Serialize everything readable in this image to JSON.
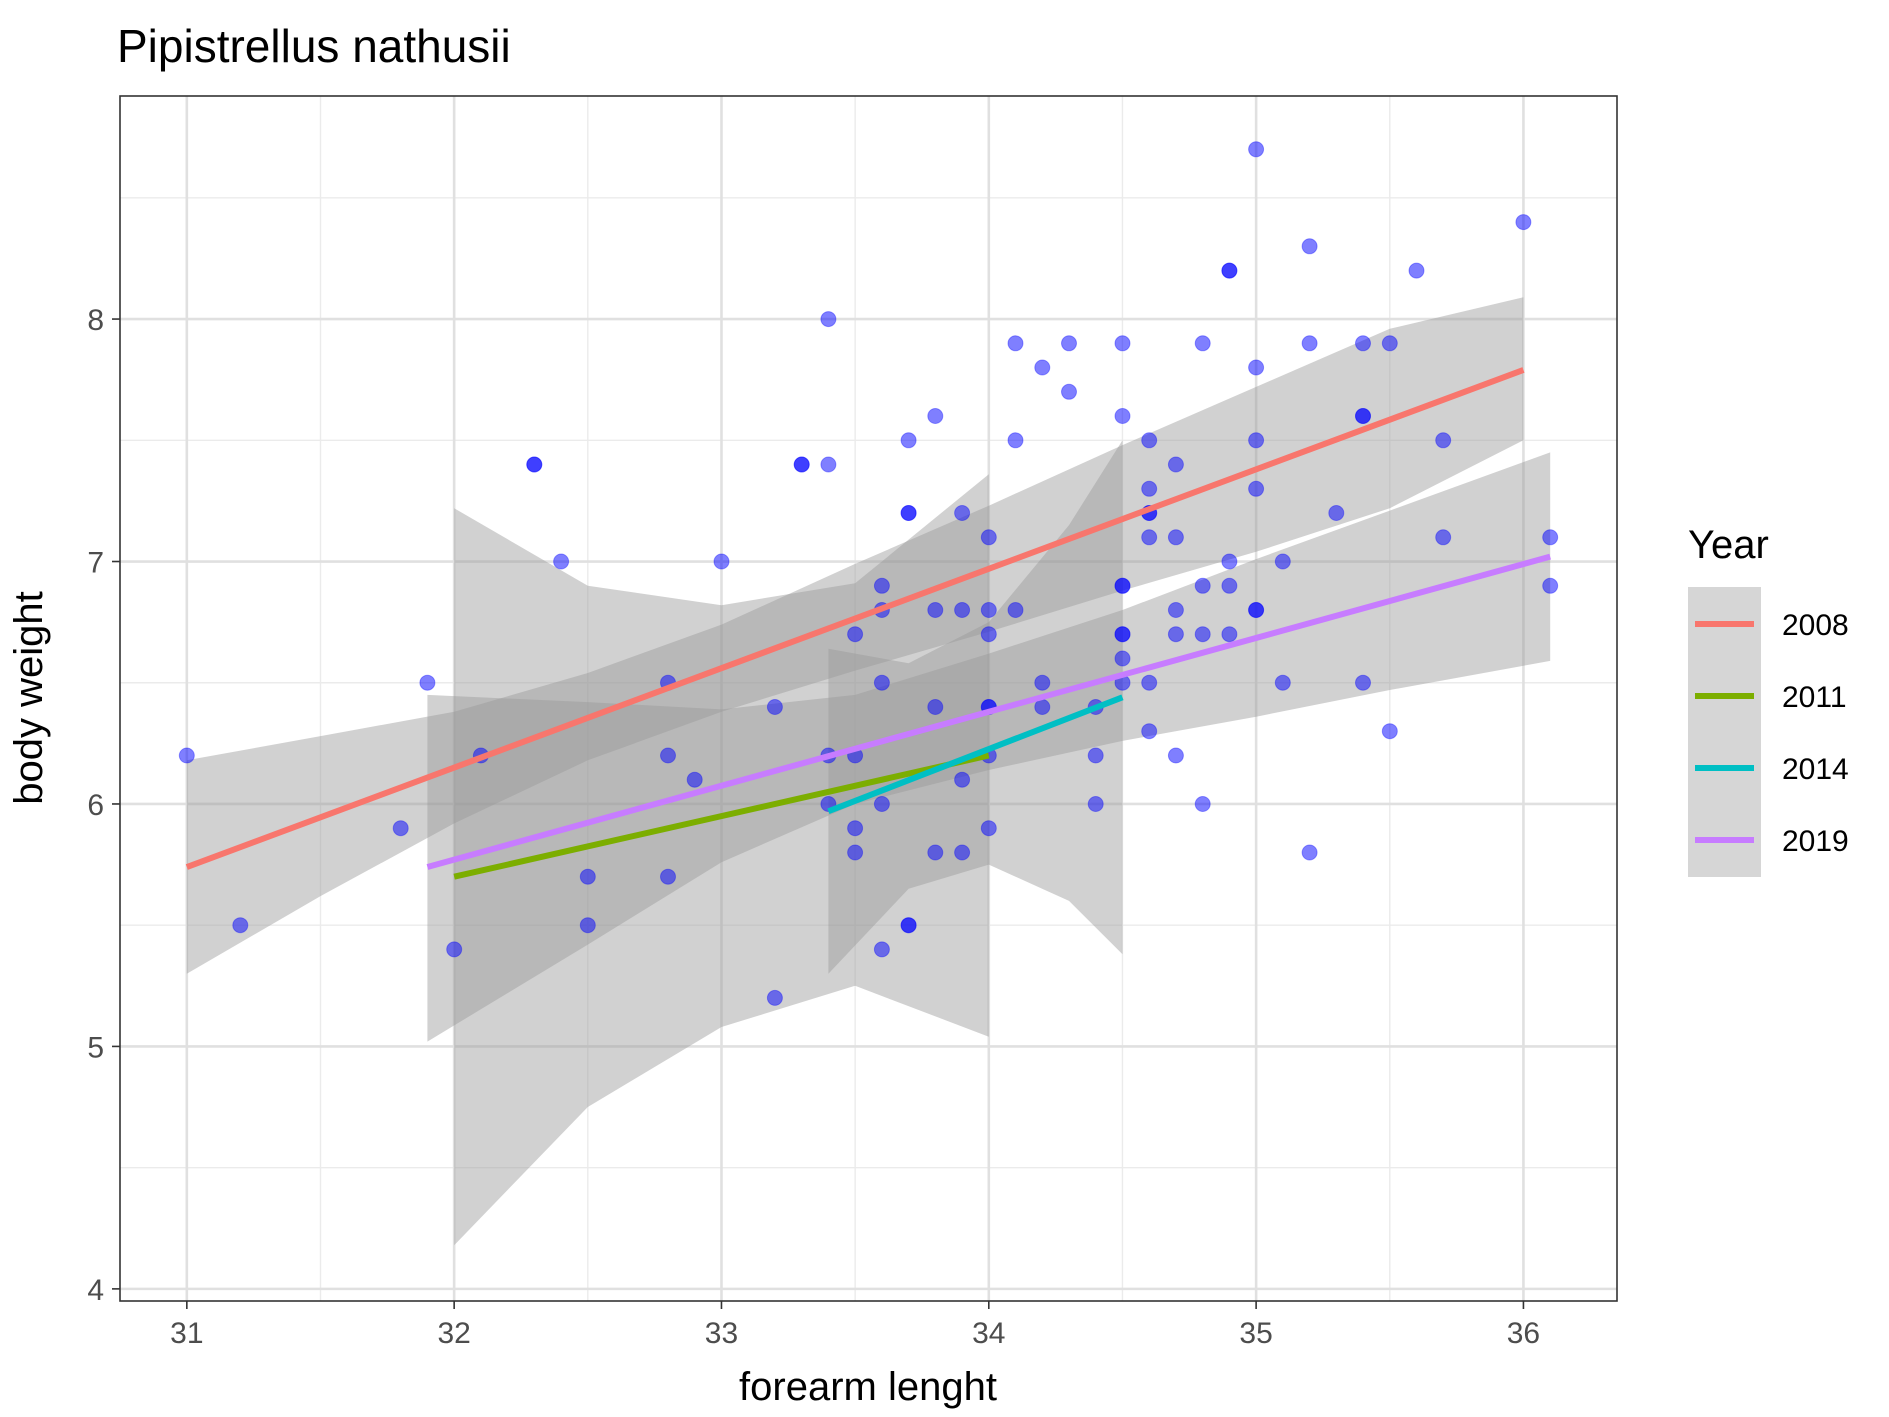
{
  "chart_data": {
    "type": "scatter",
    "title": "Pipistrellus nathusii",
    "xlabel": "forearm lenght",
    "ylabel": "body weight",
    "xlim": [
      30.75,
      36.35
    ],
    "ylim": [
      3.95,
      8.92
    ],
    "x_ticks": [
      31,
      32,
      33,
      34,
      35,
      36
    ],
    "y_ticks": [
      4,
      5,
      6,
      7,
      8
    ],
    "x_tick_labels": [
      "31",
      "32",
      "33",
      "34",
      "35",
      "36"
    ],
    "y_tick_labels": [
      "4",
      "5",
      "6",
      "7",
      "8"
    ],
    "grid": true,
    "legend": {
      "title": "Year",
      "placement": "right"
    },
    "point_color": "#0000ff",
    "point_opacity": 0.5,
    "ribbon_color": "#999999",
    "ribbon_opacity": 0.45,
    "points": [
      [
        31.0,
        6.2
      ],
      [
        31.2,
        5.5
      ],
      [
        31.8,
        5.9
      ],
      [
        31.9,
        6.5
      ],
      [
        32.0,
        5.4
      ],
      [
        32.1,
        6.2
      ],
      [
        32.3,
        7.4
      ],
      [
        32.3,
        7.4
      ],
      [
        32.4,
        7.0
      ],
      [
        32.5,
        5.7
      ],
      [
        32.5,
        5.5
      ],
      [
        32.8,
        6.5
      ],
      [
        32.8,
        6.2
      ],
      [
        32.8,
        5.7
      ],
      [
        32.9,
        6.1
      ],
      [
        33.0,
        7.0
      ],
      [
        33.2,
        5.2
      ],
      [
        33.2,
        6.4
      ],
      [
        33.3,
        7.4
      ],
      [
        33.3,
        7.4
      ],
      [
        33.4,
        8.0
      ],
      [
        33.4,
        7.4
      ],
      [
        33.4,
        6.2
      ],
      [
        33.4,
        6.0
      ],
      [
        33.5,
        6.7
      ],
      [
        33.5,
        6.2
      ],
      [
        33.5,
        5.9
      ],
      [
        33.5,
        5.8
      ],
      [
        33.6,
        6.9
      ],
      [
        33.6,
        6.8
      ],
      [
        33.6,
        6.5
      ],
      [
        33.6,
        6.0
      ],
      [
        33.6,
        5.4
      ],
      [
        33.7,
        7.5
      ],
      [
        33.7,
        7.2
      ],
      [
        33.7,
        7.2
      ],
      [
        33.7,
        5.5
      ],
      [
        33.7,
        5.5
      ],
      [
        33.8,
        7.6
      ],
      [
        33.8,
        6.8
      ],
      [
        33.8,
        6.4
      ],
      [
        33.8,
        5.8
      ],
      [
        33.9,
        7.2
      ],
      [
        33.9,
        6.8
      ],
      [
        33.9,
        6.1
      ],
      [
        33.9,
        5.8
      ],
      [
        34.0,
        7.1
      ],
      [
        34.0,
        6.8
      ],
      [
        34.0,
        6.7
      ],
      [
        34.0,
        6.4
      ],
      [
        34.0,
        6.4
      ],
      [
        34.0,
        6.2
      ],
      [
        34.0,
        5.9
      ],
      [
        34.1,
        7.9
      ],
      [
        34.1,
        7.5
      ],
      [
        34.1,
        6.8
      ],
      [
        34.2,
        7.8
      ],
      [
        34.2,
        6.5
      ],
      [
        34.2,
        6.4
      ],
      [
        34.3,
        7.9
      ],
      [
        34.3,
        7.7
      ],
      [
        34.4,
        6.4
      ],
      [
        34.4,
        6.2
      ],
      [
        34.4,
        6.0
      ],
      [
        34.5,
        7.9
      ],
      [
        34.5,
        7.6
      ],
      [
        34.5,
        6.9
      ],
      [
        34.5,
        6.9
      ],
      [
        34.5,
        6.7
      ],
      [
        34.5,
        6.7
      ],
      [
        34.5,
        6.6
      ],
      [
        34.5,
        6.5
      ],
      [
        34.6,
        7.5
      ],
      [
        34.6,
        7.3
      ],
      [
        34.6,
        7.2
      ],
      [
        34.6,
        7.2
      ],
      [
        34.6,
        7.1
      ],
      [
        34.6,
        6.5
      ],
      [
        34.6,
        6.3
      ],
      [
        34.7,
        7.4
      ],
      [
        34.7,
        7.1
      ],
      [
        34.7,
        6.8
      ],
      [
        34.7,
        6.7
      ],
      [
        34.7,
        6.2
      ],
      [
        34.8,
        7.9
      ],
      [
        34.8,
        6.9
      ],
      [
        34.8,
        6.7
      ],
      [
        34.8,
        6.0
      ],
      [
        34.9,
        8.2
      ],
      [
        34.9,
        8.2
      ],
      [
        34.9,
        7.0
      ],
      [
        34.9,
        6.9
      ],
      [
        34.9,
        6.7
      ],
      [
        35.0,
        8.7
      ],
      [
        35.0,
        7.8
      ],
      [
        35.0,
        7.5
      ],
      [
        35.0,
        7.3
      ],
      [
        35.0,
        6.8
      ],
      [
        35.0,
        6.8
      ],
      [
        35.1,
        7.0
      ],
      [
        35.1,
        6.5
      ],
      [
        35.2,
        8.3
      ],
      [
        35.2,
        7.9
      ],
      [
        35.2,
        5.8
      ],
      [
        35.3,
        7.2
      ],
      [
        35.4,
        7.9
      ],
      [
        35.4,
        7.6
      ],
      [
        35.4,
        7.6
      ],
      [
        35.4,
        6.5
      ],
      [
        35.5,
        7.9
      ],
      [
        35.5,
        6.3
      ],
      [
        35.6,
        8.2
      ],
      [
        35.7,
        7.5
      ],
      [
        35.7,
        7.1
      ],
      [
        36.0,
        8.4
      ],
      [
        36.1,
        7.1
      ],
      [
        36.1,
        6.9
      ]
    ],
    "series": [
      {
        "name": "2008",
        "color": "#f8766d",
        "x": [
          31.0,
          31.5,
          32.0,
          32.5,
          33.0,
          33.5,
          34.0,
          34.5,
          35.0,
          35.5,
          36.0
        ],
        "y": [
          5.74,
          5.95,
          6.15,
          6.36,
          6.56,
          6.77,
          6.97,
          7.18,
          7.38,
          7.59,
          7.79
        ],
        "lower": [
          5.3,
          5.62,
          5.92,
          6.18,
          6.38,
          6.55,
          6.71,
          6.88,
          7.04,
          7.22,
          7.5
        ],
        "upper": [
          6.18,
          6.28,
          6.38,
          6.54,
          6.74,
          6.99,
          7.23,
          7.48,
          7.72,
          7.96,
          8.09
        ]
      },
      {
        "name": "2011",
        "color": "#7cae00",
        "x": [
          32.0,
          32.5,
          33.0,
          33.5,
          34.0
        ],
        "y": [
          5.7,
          5.83,
          5.95,
          6.08,
          6.2
        ],
        "lower": [
          4.18,
          4.75,
          5.08,
          5.25,
          5.04
        ],
        "upper": [
          7.22,
          6.9,
          6.82,
          6.91,
          7.36
        ]
      },
      {
        "name": "2014",
        "color": "#00bfc4",
        "x": [
          33.4,
          33.7,
          34.0,
          34.3,
          34.5
        ],
        "y": [
          5.97,
          6.11,
          6.24,
          6.38,
          6.44
        ],
        "lower": [
          5.3,
          5.65,
          5.75,
          5.6,
          5.38
        ],
        "upper": [
          6.64,
          6.58,
          6.75,
          7.15,
          7.5
        ]
      },
      {
        "name": "2019",
        "color": "#c77cff",
        "x": [
          31.9,
          32.5,
          33.0,
          33.5,
          34.0,
          34.5,
          35.0,
          35.5,
          36.1
        ],
        "y": [
          5.74,
          5.92,
          6.07,
          6.22,
          6.38,
          6.53,
          6.68,
          6.84,
          7.02
        ],
        "lower": [
          5.02,
          5.42,
          5.76,
          6.0,
          6.14,
          6.26,
          6.36,
          6.47,
          6.59
        ],
        "upper": [
          6.45,
          6.42,
          6.39,
          6.45,
          6.62,
          6.8,
          7.01,
          7.21,
          7.45
        ]
      }
    ]
  }
}
